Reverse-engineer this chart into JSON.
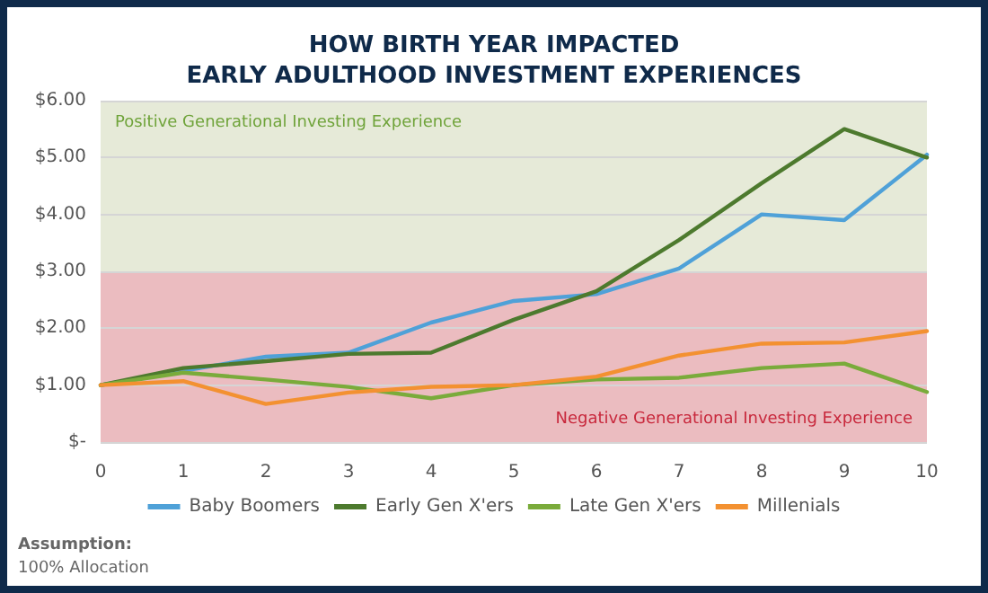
{
  "chart_data": {
    "type": "line",
    "title": "HOW BIRTH YEAR IMPACTED\nEARLY ADULTHOOD INVESTMENT EXPERIENCES",
    "categories": [
      "0",
      "1",
      "2",
      "3",
      "4",
      "5",
      "6",
      "7",
      "8",
      "9",
      "10"
    ],
    "series": [
      {
        "name": "Baby Boomers",
        "color": "#4fa1d8",
        "values": [
          1.0,
          1.25,
          1.5,
          1.57,
          2.1,
          2.48,
          2.6,
          3.05,
          4.0,
          3.9,
          5.05
        ]
      },
      {
        "name": "Early Gen X'ers",
        "color": "#4d7a2e",
        "values": [
          1.0,
          1.3,
          1.42,
          1.55,
          1.57,
          2.15,
          2.65,
          3.55,
          4.55,
          5.5,
          5.0
        ]
      },
      {
        "name": "Late Gen X'ers",
        "color": "#7aab3b",
        "values": [
          1.0,
          1.22,
          1.1,
          0.97,
          0.77,
          1.0,
          1.1,
          1.13,
          1.3,
          1.38,
          0.88
        ]
      },
      {
        "name": "Millenials",
        "color": "#f39131",
        "values": [
          1.0,
          1.07,
          0.67,
          0.87,
          0.97,
          1.0,
          1.15,
          1.52,
          1.73,
          1.75,
          1.95
        ]
      }
    ],
    "ylim": [
      0,
      6
    ],
    "yticks": [
      {
        "value": 0,
        "label": "$-"
      },
      {
        "value": 1,
        "label": "$1.00"
      },
      {
        "value": 2,
        "label": "$2.00"
      },
      {
        "value": 3,
        "label": "$3.00"
      },
      {
        "value": 4,
        "label": "$4.00"
      },
      {
        "value": 5,
        "label": "$5.00"
      },
      {
        "value": 6,
        "label": "$6.00"
      }
    ],
    "bands": [
      {
        "axis": "y",
        "from": 3,
        "to": 6,
        "label": "Positive Generational Investing Experience",
        "color": "#e6ead8"
      },
      {
        "axis": "y",
        "from": 0,
        "to": 3,
        "label": "Negative Generational Investing Experience",
        "color": "#ebbcc0"
      }
    ],
    "annotations": [
      "Assumption:",
      "100% Allocation"
    ],
    "grid": "y",
    "legend": "bottom",
    "marker": "none",
    "line_style": "solid"
  }
}
